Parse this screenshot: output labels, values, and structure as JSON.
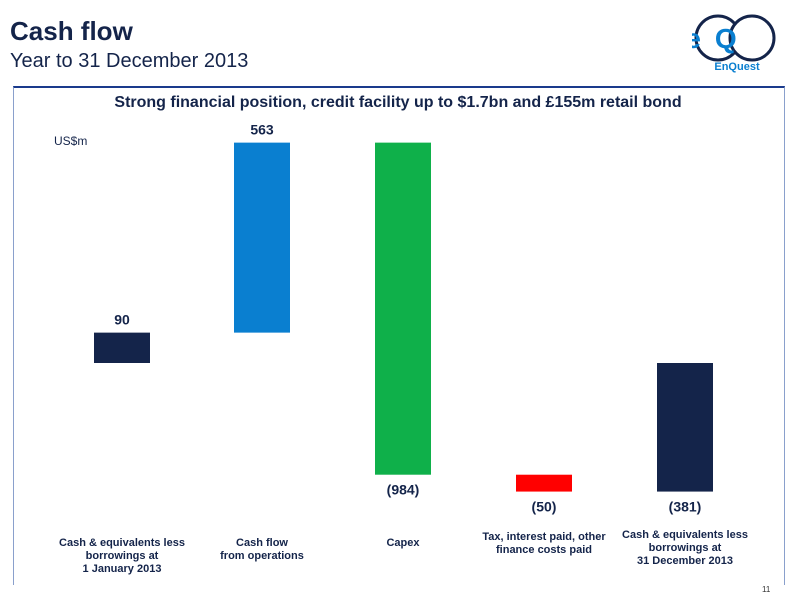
{
  "slide": {
    "title": "Cash flow",
    "subtitle": "Year to 31 December 2013",
    "page_number": "11"
  },
  "logo": {
    "text": "EnQuest",
    "monogram": "eQ"
  },
  "colors": {
    "navy": "#14244a",
    "blue": "#0a7fd0",
    "green": "#0fb04a",
    "red": "#ff0000",
    "accent_border": "#1a3a8c"
  },
  "chart_data": {
    "type": "bar",
    "subtype": "waterfall",
    "title": "Strong financial position, credit facility up to $1.7bn and £155m retail bond",
    "ylabel": "US$m",
    "categories": [
      [
        "Cash & equivalents less",
        "borrowings at",
        "1 January  2013"
      ],
      [
        "Cash flow",
        "from operations"
      ],
      [
        "Capex"
      ],
      [
        "Tax, interest paid, other",
        "finance costs paid"
      ],
      [
        "Cash & equivalents less",
        "borrowings at",
        "31 December 2013"
      ]
    ],
    "values": [
      90,
      563,
      -984,
      -50,
      -381
    ],
    "data_labels": [
      "90",
      "563",
      "(984)",
      "(50)",
      "(381)"
    ],
    "bar_kinds": [
      "total",
      "increase",
      "decrease",
      "decrease",
      "total"
    ],
    "bar_colors": [
      "#14244a",
      "#0a7fd0",
      "#0fb04a",
      "#ff0000",
      "#14244a"
    ],
    "grid": false,
    "legend": "none"
  }
}
